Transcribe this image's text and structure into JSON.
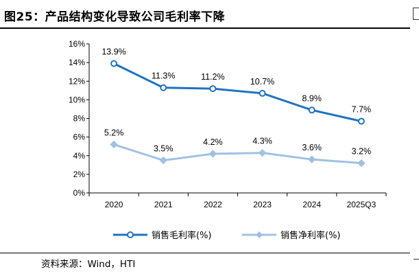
{
  "title": "图25：产品结构变化导致公司毛利率下降",
  "source": "资料来源：Wind，HTI",
  "colors": {
    "gross": "#1f72c0",
    "net": "#9fc1e4"
  },
  "chart_data": {
    "type": "line",
    "categories": [
      "2020",
      "2021",
      "2022",
      "2023",
      "2024",
      "2025Q3"
    ],
    "y_ticks": [
      "0%",
      "2%",
      "4%",
      "6%",
      "8%",
      "10%",
      "12%",
      "14%",
      "16%"
    ],
    "ylim": [
      0,
      16
    ],
    "y_unit": "%",
    "grid": false,
    "legend_position": "bottom",
    "series": [
      {
        "name": "销售毛利率(%)",
        "values": [
          13.9,
          11.3,
          11.2,
          10.7,
          8.9,
          7.7
        ],
        "labels": [
          "13.9%",
          "11.3%",
          "11.2%",
          "10.7%",
          "8.9%",
          "7.7%"
        ],
        "marker": "circle"
      },
      {
        "name": "销售净利率(%)",
        "values": [
          5.2,
          3.5,
          4.2,
          4.3,
          3.6,
          3.2
        ],
        "labels": [
          "5.2%",
          "3.5%",
          "4.2%",
          "4.3%",
          "3.6%",
          "3.2%"
        ],
        "marker": "diamond"
      }
    ]
  }
}
